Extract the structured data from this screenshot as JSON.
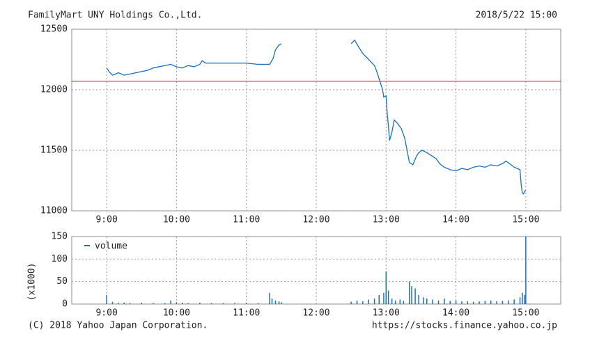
{
  "chart_data": [
    {
      "type": "line",
      "title": "FamilyMart UNY Holdings Co.,Ltd.",
      "subtitle": "2018/5/22 15:00",
      "x": [
        540,
        542,
        545,
        550,
        555,
        560,
        565,
        570,
        575,
        580,
        585,
        590,
        595,
        600,
        605,
        610,
        615,
        620,
        622,
        625,
        635,
        645,
        660,
        670,
        680,
        683,
        685,
        688,
        690,
        720,
        750,
        753,
        756,
        760,
        765,
        770,
        772,
        775,
        777,
        778,
        780,
        781,
        782,
        783,
        785,
        787,
        790,
        793,
        796,
        798,
        800,
        803,
        806,
        808,
        811,
        815,
        820,
        823,
        826,
        830,
        835,
        840,
        845,
        850,
        855,
        860,
        865,
        870,
        875,
        880,
        883,
        886,
        890,
        895,
        896,
        897,
        898,
        899,
        900
      ],
      "values": [
        12180,
        12150,
        12120,
        12140,
        12120,
        12130,
        12140,
        12150,
        12160,
        12180,
        12190,
        12200,
        12210,
        12190,
        12180,
        12200,
        12190,
        12210,
        12240,
        12220,
        12220,
        12220,
        12220,
        12210,
        12210,
        12260,
        12330,
        12370,
        12380,
        null,
        12380,
        12410,
        12360,
        12300,
        12250,
        12200,
        12150,
        12060,
        12000,
        11940,
        11950,
        11800,
        11700,
        11580,
        11650,
        11750,
        11720,
        11680,
        11600,
        11500,
        11400,
        11380,
        11450,
        11480,
        11500,
        11480,
        11450,
        11430,
        11390,
        11360,
        11340,
        11330,
        11350,
        11340,
        11360,
        11370,
        11360,
        11380,
        11370,
        11390,
        11410,
        11390,
        11360,
        11340,
        11220,
        11150,
        11140,
        11160,
        11170
      ],
      "color": "#1a6fc4",
      "reference_line": 12070,
      "reference_color": "#e03030",
      "xlim": [
        510,
        930
      ],
      "xticks": [
        {
          "value": 540,
          "label": "9:00"
        },
        {
          "value": 600,
          "label": "10:00"
        },
        {
          "value": 660,
          "label": "11:00"
        },
        {
          "value": 720,
          "label": "12:00"
        },
        {
          "value": 780,
          "label": "13:00"
        },
        {
          "value": 840,
          "label": "14:00"
        },
        {
          "value": 900,
          "label": "15:00"
        }
      ],
      "ylim": [
        11000,
        12500
      ],
      "yticks": [
        11000,
        11500,
        12000,
        12500
      ],
      "grid": true
    },
    {
      "type": "bar",
      "y_label": "(x1000)",
      "legend": "upper left",
      "x": [
        540,
        545,
        550,
        555,
        560,
        570,
        580,
        590,
        595,
        600,
        605,
        610,
        620,
        630,
        640,
        650,
        660,
        670,
        680,
        682,
        685,
        688,
        690,
        750,
        755,
        760,
        765,
        770,
        774,
        778,
        780,
        782,
        785,
        788,
        792,
        795,
        800,
        802,
        805,
        808,
        812,
        815,
        820,
        825,
        830,
        835,
        840,
        845,
        850,
        855,
        860,
        865,
        870,
        875,
        880,
        885,
        890,
        895,
        897,
        899,
        900
      ],
      "series": [
        {
          "name": "volume",
          "color": "#1a6fc4",
          "values": [
            20,
            5,
            3,
            3,
            2,
            3,
            2,
            2,
            8,
            4,
            3,
            2,
            3,
            2,
            2,
            2,
            3,
            2,
            25,
            12,
            8,
            6,
            4,
            5,
            8,
            6,
            10,
            12,
            20,
            25,
            72,
            30,
            12,
            8,
            10,
            7,
            50,
            40,
            35,
            20,
            15,
            12,
            10,
            8,
            12,
            7,
            8,
            6,
            6,
            5,
            6,
            7,
            8,
            6,
            7,
            8,
            10,
            15,
            25,
            20,
            150
          ]
        }
      ],
      "xlim": [
        510,
        930
      ],
      "xticks": [
        {
          "value": 540,
          "label": "9:00"
        },
        {
          "value": 600,
          "label": "10:00"
        },
        {
          "value": 660,
          "label": "11:00"
        },
        {
          "value": 720,
          "label": "12:00"
        },
        {
          "value": 780,
          "label": "13:00"
        },
        {
          "value": 840,
          "label": "14:00"
        },
        {
          "value": 900,
          "label": "15:00"
        }
      ],
      "ylim": [
        0,
        150
      ],
      "yticks": [
        0,
        50,
        100,
        150
      ],
      "grid": true
    }
  ],
  "footer": {
    "left": "(C) 2018 Yahoo Japan Corporation.",
    "right": "https://stocks.finance.yahoo.co.jp"
  }
}
